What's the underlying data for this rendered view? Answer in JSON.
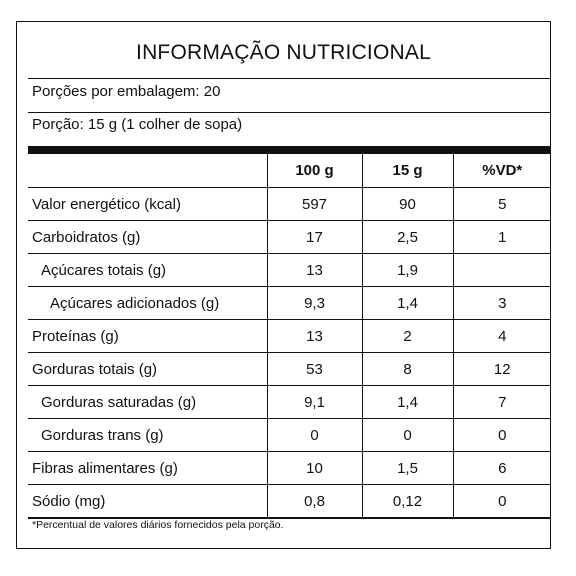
{
  "title": "INFORMAÇÃO NUTRICIONAL",
  "servings_per_package": "Porções por embalagem: 20",
  "serving_size": "Porção: 15 g (1 colher de sopa)",
  "columns": [
    "",
    "100 g",
    "15 g",
    "%VD*"
  ],
  "rows": [
    {
      "label": "Valor energético (kcal)",
      "per100": "597",
      "per_serving": "90",
      "dv": "5"
    },
    {
      "label": "Carboidratos (g)",
      "per100": "17",
      "per_serving": "2,5",
      "dv": "1"
    },
    {
      "label": "Açúcares totais (g)",
      "per100": "13",
      "per_serving": "1,9",
      "dv": ""
    },
    {
      "label": "Açúcares adicionados (g)",
      "per100": "9,3",
      "per_serving": "1,4",
      "dv": "3"
    },
    {
      "label": "Proteínas (g)",
      "per100": "13",
      "per_serving": "2",
      "dv": "4"
    },
    {
      "label": "Gorduras totais (g)",
      "per100": "53",
      "per_serving": "8",
      "dv": "12"
    },
    {
      "label": "Gorduras saturadas (g)",
      "per100": "9,1",
      "per_serving": "1,4",
      "dv": "7"
    },
    {
      "label": "Gorduras trans (g)",
      "per100": "0",
      "per_serving": "0",
      "dv": "0"
    },
    {
      "label": "Fibras alimentares (g)",
      "per100": "10",
      "per_serving": "1,5",
      "dv": "6"
    },
    {
      "label": "Sódio (mg)",
      "per100": "0,8",
      "per_serving": "0,12",
      "dv": "0"
    }
  ],
  "footnote": "*Percentual de valores diários fornecidos pela porção."
}
